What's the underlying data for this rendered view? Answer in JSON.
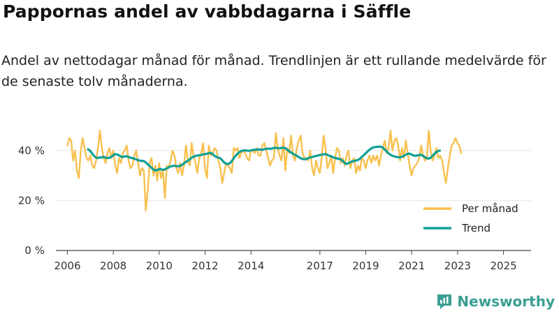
{
  "chart_data": {
    "type": "line",
    "title": "Pappornas andel av vabbdagarna i Säffle",
    "subtitle": "Andel av nettodagar månad för månad. Trendlinjen är ett rullande medelvärde för de senaste tolv månaderna.",
    "ylim": [
      0,
      50
    ],
    "yticks": [
      0,
      20,
      40
    ],
    "ytick_labels": [
      "0 %",
      "20 %",
      "40 %"
    ],
    "xlim": [
      2005.5,
      2026.2
    ],
    "xticks": [
      2006,
      2008,
      2010,
      2012,
      2014,
      2017,
      2019,
      2021,
      2023,
      2025
    ],
    "xtick_labels": [
      "2006",
      "2008",
      "2010",
      "2012",
      "2014",
      "2017",
      "2019",
      "2021",
      "2023",
      "2025"
    ],
    "legend": [
      "Per månad",
      "Trend"
    ],
    "legend_position": "bottom-right",
    "colors": {
      "monthly": "#f8c04e",
      "trend": "#10a095",
      "axis": "#444444",
      "grid": "#e6e6e6"
    },
    "series": [
      {
        "name": "Per månad",
        "x_start": 2006.0,
        "x_step": 0.0833,
        "values": [
          42,
          45,
          44,
          36,
          40,
          32,
          29,
          40,
          45,
          41,
          37,
          36,
          38,
          34,
          33,
          36,
          41,
          48,
          41,
          37,
          35,
          39,
          41,
          37,
          40,
          34,
          31,
          37,
          35,
          39,
          40,
          42,
          36,
          33,
          34,
          38,
          40,
          35,
          30,
          33,
          32,
          16,
          24,
          35,
          37,
          30,
          34,
          28,
          35,
          29,
          32,
          21,
          34,
          33,
          36,
          40,
          38,
          33,
          31,
          35,
          30,
          34,
          42,
          36,
          34,
          43,
          38,
          35,
          31,
          37,
          39,
          43,
          33,
          29,
          42,
          38,
          39,
          41,
          40,
          36,
          33,
          27,
          31,
          35,
          34,
          33,
          31,
          41,
          40,
          41,
          37,
          39,
          40,
          39,
          37,
          36,
          40,
          40,
          39,
          41,
          38,
          38,
          42,
          43,
          40,
          37,
          34,
          36,
          37,
          47,
          41,
          38,
          36,
          45,
          32,
          41,
          39,
          46,
          38,
          36,
          41,
          44,
          46,
          39,
          37,
          37,
          36,
          40,
          33,
          30,
          36,
          33,
          31,
          37,
          46,
          41,
          33,
          35,
          38,
          31,
          37,
          41,
          40,
          35,
          37,
          34,
          38,
          40,
          33,
          36,
          37,
          31,
          34,
          32,
          37,
          36,
          33,
          36,
          38,
          35,
          38,
          36,
          38,
          34,
          38,
          41,
          44,
          39,
          41,
          48,
          40,
          44,
          45,
          42,
          36,
          41,
          37,
          44,
          39,
          34,
          30,
          33,
          34,
          35,
          37,
          42,
          38,
          36,
          37,
          48,
          40,
          36,
          38,
          41,
          37,
          38,
          36,
          31,
          27,
          33,
          38,
          42,
          43,
          45,
          43,
          42,
          39
        ]
      },
      {
        "name": "Trend",
        "x_start": 2006.9,
        "x_step": 0.0833,
        "values": [
          40.5,
          40.0,
          39.0,
          38.0,
          37.3,
          37.0,
          37.2,
          37.3,
          37.5,
          37.2,
          37.0,
          37.1,
          37.4,
          38.0,
          38.6,
          38.5,
          38.2,
          37.7,
          37.4,
          37.6,
          37.8,
          37.5,
          37.2,
          37.0,
          36.8,
          36.5,
          36.2,
          36.0,
          35.8,
          35.9,
          35.4,
          34.7,
          34.0,
          33.2,
          32.6,
          32.0,
          32.2,
          32.5,
          32.6,
          32.3,
          32.4,
          32.8,
          33.2,
          33.6,
          33.8,
          33.9,
          33.8,
          33.7,
          33.9,
          34.2,
          34.8,
          35.4,
          35.8,
          36.4,
          37.0,
          37.5,
          37.8,
          38.0,
          38.1,
          38.2,
          38.4,
          38.6,
          38.7,
          38.9,
          39.1,
          38.7,
          38.0,
          37.5,
          37.2,
          37.0,
          36.3,
          35.4,
          34.8,
          34.6,
          34.9,
          35.6,
          36.7,
          37.8,
          38.6,
          39.3,
          39.8,
          40.0,
          40.1,
          40.0,
          39.9,
          40.0,
          40.2,
          40.3,
          40.4,
          40.5,
          40.4,
          40.3,
          40.5,
          40.7,
          40.8,
          40.7,
          40.8,
          41.0,
          41.1,
          41.0,
          40.9,
          41.0,
          41.2,
          41.0,
          40.5,
          39.9,
          39.3,
          38.8,
          38.4,
          38.0,
          37.5,
          37.0,
          36.7,
          36.5,
          36.6,
          36.9,
          37.2,
          37.4,
          37.6,
          37.8,
          38.0,
          38.2,
          38.3,
          38.5,
          38.6,
          38.4,
          38.0,
          37.7,
          37.4,
          37.1,
          36.9,
          36.7,
          36.5,
          36.0,
          35.2,
          34.6,
          34.9,
          35.3,
          35.6,
          35.8,
          36.0,
          36.2,
          36.6,
          37.4,
          38.0,
          38.8,
          39.5,
          40.2,
          40.8,
          41.2,
          41.4,
          41.5,
          41.6,
          41.5,
          41.3,
          40.6,
          39.8,
          39.0,
          38.4,
          38.0,
          37.7,
          37.5,
          37.4,
          37.3,
          37.5,
          37.8,
          38.3,
          38.7,
          38.8,
          38.5,
          38.1,
          37.9,
          38.0,
          38.2,
          38.3,
          38.0,
          37.5,
          37.0,
          36.8,
          37.0,
          37.8,
          38.6,
          39.3,
          39.8,
          40.0
        ]
      }
    ]
  },
  "brand": {
    "name": "Newsworthy",
    "logo_icon": "bar-chart-icon"
  }
}
